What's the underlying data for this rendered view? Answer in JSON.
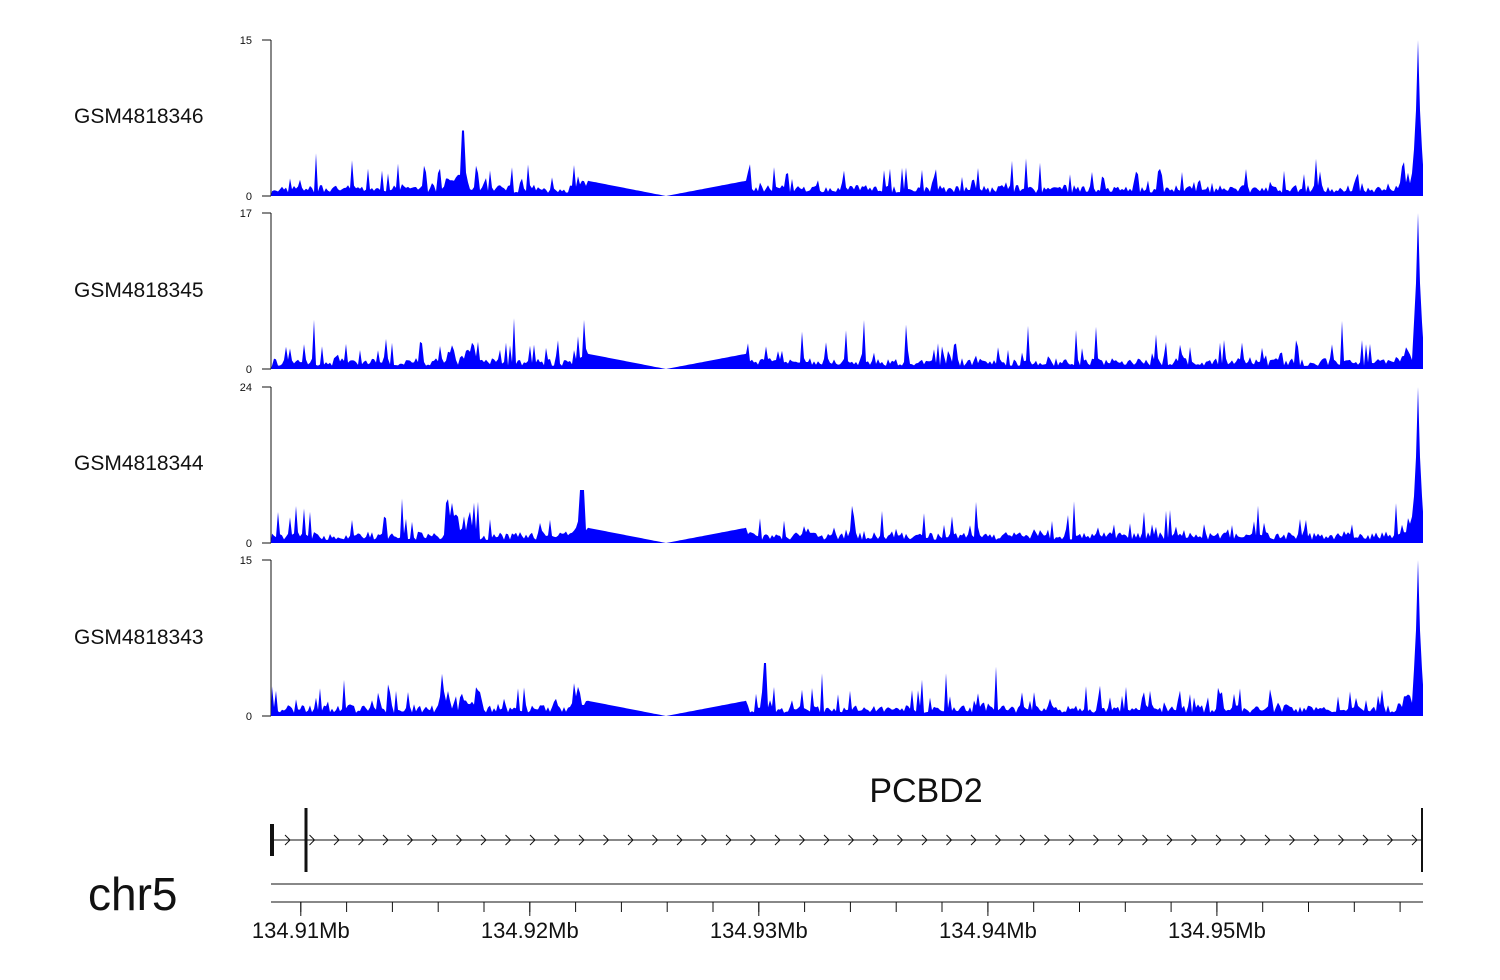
{
  "colors": {
    "signal": "#0000ff",
    "axis": "#111111"
  },
  "chart_data": {
    "type": "area",
    "x_range_mb": [
      134.9087,
      134.959
    ],
    "tracks": [
      {
        "name": "GSM4818346",
        "ymax": 15,
        "ymin": 0,
        "ymax_label": "15",
        "ymin_label": "0"
      },
      {
        "name": "GSM4818345",
        "ymax": 17,
        "ymin": 0,
        "ymax_label": "17",
        "ymin_label": "0"
      },
      {
        "name": "GSM4818344",
        "ymax": 24,
        "ymin": 0,
        "ymax_label": "24",
        "ymin_label": "0"
      },
      {
        "name": "GSM4818343",
        "ymax": 15,
        "ymin": 0,
        "ymax_label": "15",
        "ymin_label": "0"
      }
    ],
    "gene": {
      "name": "PCBD2",
      "start_mb": 134.9087,
      "end_mb": 134.959,
      "strand": "+"
    },
    "chromosome": "chr5",
    "x_ticks": [
      {
        "label": "134.91Mb",
        "value": 134.91
      },
      {
        "label": "134.92Mb",
        "value": 134.92
      },
      {
        "label": "134.93Mb",
        "value": 134.93
      },
      {
        "label": "134.94Mb",
        "value": 134.94
      },
      {
        "label": "134.95Mb",
        "value": 134.95
      }
    ]
  }
}
